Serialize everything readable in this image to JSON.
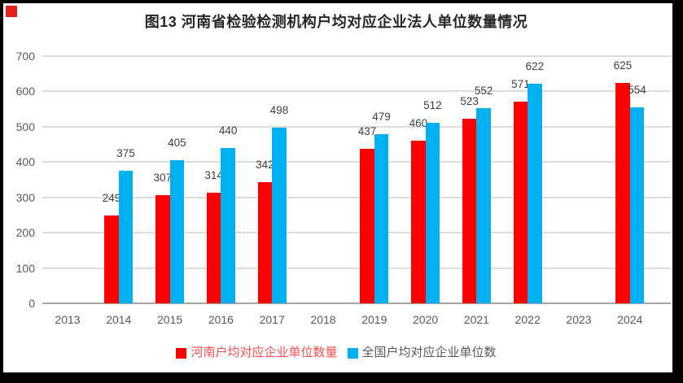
{
  "chart_data": {
    "type": "bar",
    "title": "图13  河南省检验检测机构户均对应企业法人单位数量情况",
    "categories": [
      "2013",
      "2014",
      "2015",
      "2016",
      "2017",
      "2018",
      "2019",
      "2020",
      "2021",
      "2022",
      "2023",
      "2024"
    ],
    "series": [
      {
        "key": "henan",
        "name": "河南户均对应企业单位数量",
        "color": "#FF0000",
        "values": [
          null,
          249,
          307,
          314,
          342,
          null,
          437,
          460,
          523,
          571,
          null,
          625
        ]
      },
      {
        "key": "national",
        "name": "全国户均对应企业单位数",
        "color": "#00B0F0",
        "values": [
          null,
          375,
          405,
          440,
          498,
          null,
          479,
          512,
          552,
          622,
          null,
          554
        ]
      }
    ],
    "ylim": [
      0,
      700
    ],
    "yticks": [
      0,
      100,
      200,
      300,
      400,
      500,
      600,
      700
    ],
    "grid": true,
    "legend_position": "bottom",
    "data_labels": true
  },
  "legend": {
    "items": [
      {
        "label": "河南户均对应企业单位数量",
        "swatch": "#FF0000",
        "label_color": "#FF4B4B"
      },
      {
        "label": "全国户均对应企业单位数",
        "swatch": "#00B0F0",
        "label_color": "#595959"
      }
    ]
  },
  "colors": {
    "background": "#FFFFFF",
    "frame": "#000000",
    "corner_marker": "#E8211D",
    "gridline": "#DCDCDC",
    "axis_line": "#A6A6A6",
    "axis_text": "#595959",
    "data_label_text": "#3F3F3F",
    "title_text": "#262626",
    "bar_red": "#FF0000",
    "bar_blue": "#00B0F0"
  }
}
